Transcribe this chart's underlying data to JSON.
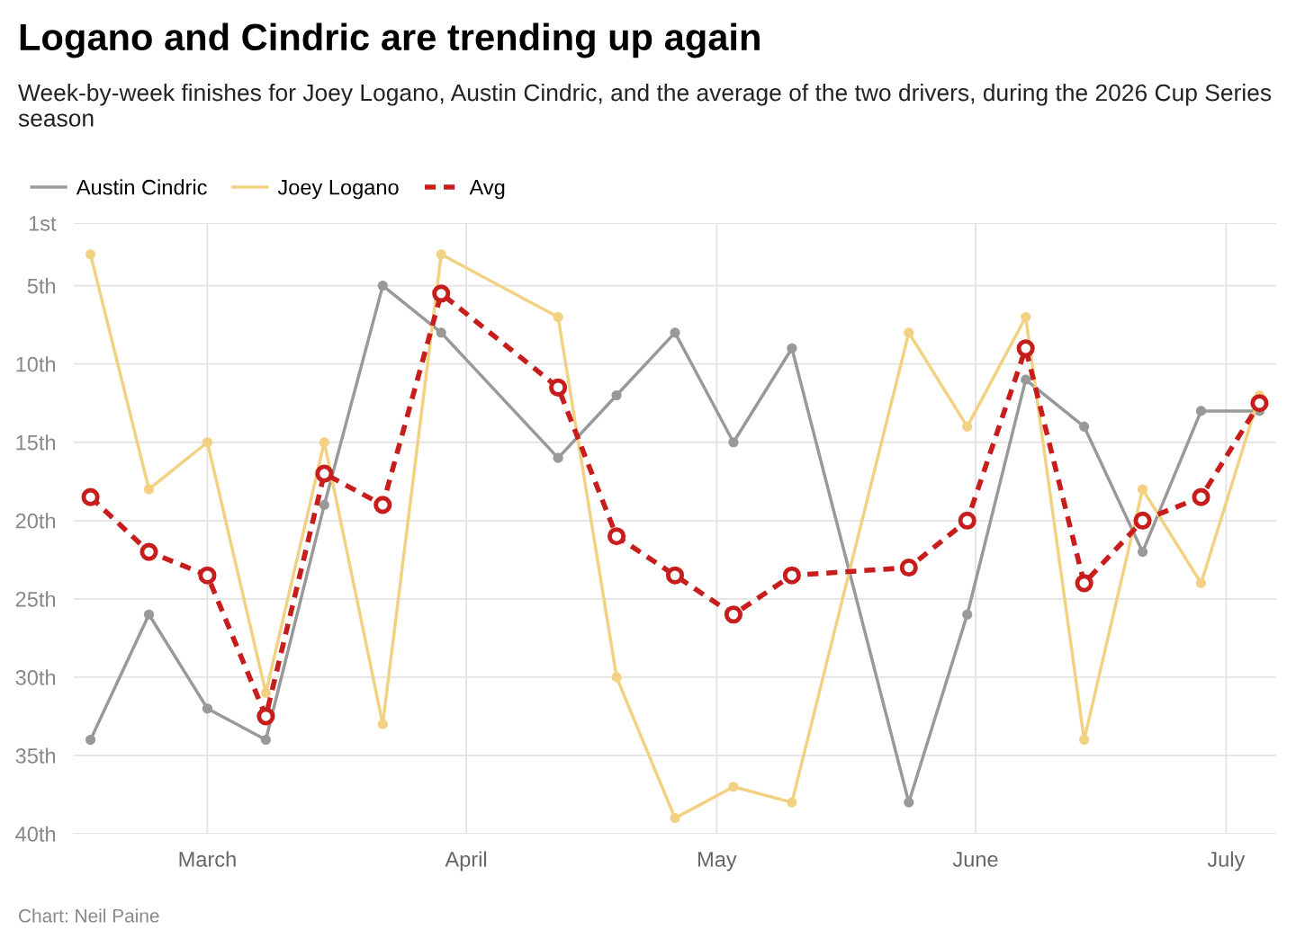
{
  "chart_data": {
    "type": "line",
    "title": "Logano and Cindric are trending up again",
    "subtitle": "Week-by-week finishes for Joey Logano, Austin Cindric, and the average of the two drivers, during the 2026 Cup Series season",
    "x": [
      "2026-02-15",
      "2026-02-22",
      "2026-03-01",
      "2026-03-08",
      "2026-03-15",
      "2026-03-22",
      "2026-03-29",
      "2026-04-12",
      "2026-04-19",
      "2026-04-26",
      "2026-05-03",
      "2026-05-10",
      "2026-05-24",
      "2026-05-31",
      "2026-06-07",
      "2026-06-14",
      "2026-06-21",
      "2026-06-28",
      "2026-07-05"
    ],
    "series": [
      {
        "name": "Austin Cindric",
        "color": "#999999",
        "marker": "circle",
        "line_style": "solid",
        "values": [
          34,
          26,
          32,
          34,
          19,
          5,
          8,
          16,
          12,
          8,
          15,
          9,
          38,
          26,
          11,
          14,
          22,
          13,
          13
        ]
      },
      {
        "name": "Joey Logano",
        "color": "#f2d282",
        "marker": "circle",
        "line_style": "solid",
        "values": [
          3,
          18,
          15,
          31,
          15,
          33,
          3,
          7,
          30,
          39,
          37,
          38,
          8,
          14,
          7,
          34,
          18,
          24,
          12
        ]
      },
      {
        "name": "Avg",
        "color": "#c71e1d",
        "marker": "circle",
        "line_style": "dashed",
        "values": [
          18.5,
          22,
          23.5,
          32.5,
          17,
          19,
          5.5,
          11.5,
          21,
          23.5,
          26,
          23.5,
          23,
          20,
          9,
          24,
          20,
          18.5,
          12.5
        ]
      }
    ],
    "xlim": [
      "2026-02-13",
      "2026-07-07"
    ],
    "xticks": [
      {
        "value": "2026-03-01",
        "label": "March"
      },
      {
        "value": "2026-04-01",
        "label": "April"
      },
      {
        "value": "2026-05-01",
        "label": "May"
      },
      {
        "value": "2026-06-01",
        "label": "June"
      },
      {
        "value": "2026-07-01",
        "label": "July"
      }
    ],
    "ylim": [
      40,
      1
    ],
    "yticks": [
      {
        "value": 1,
        "label": "1st"
      },
      {
        "value": 5,
        "label": "5th"
      },
      {
        "value": 10,
        "label": "10th"
      },
      {
        "value": 15,
        "label": "15th"
      },
      {
        "value": 20,
        "label": "20th"
      },
      {
        "value": 25,
        "label": "25th"
      },
      {
        "value": 30,
        "label": "30th"
      },
      {
        "value": 35,
        "label": "35th"
      },
      {
        "value": 40,
        "label": "40th"
      }
    ],
    "grid": true,
    "legend": "top left",
    "annotations": [
      "Chart: Neil Paine"
    ]
  }
}
